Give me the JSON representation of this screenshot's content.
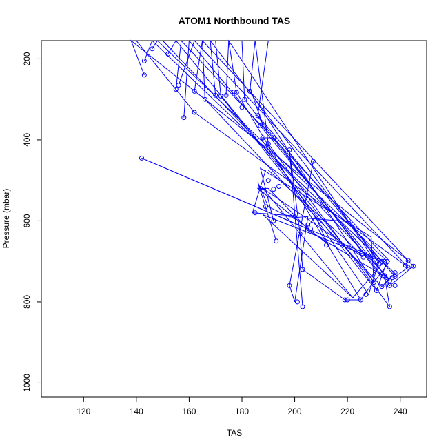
{
  "chart_data": {
    "type": "line",
    "title": "ATOM1 Northbound TAS",
    "xlabel": "TAS",
    "ylabel": "Pressure (mbar)",
    "xlim": [
      104,
      250
    ],
    "ylim": [
      1035,
      155
    ],
    "y_reversed": true,
    "x_ticks": [
      120,
      140,
      160,
      180,
      200,
      220,
      240
    ],
    "y_ticks": [
      200,
      400,
      600,
      800,
      1000
    ],
    "grid": false,
    "legend": "none",
    "series_color": "#0000ff",
    "path_segments": [
      [
        [
          143,
          240
        ],
        [
          138,
          155
        ],
        [
          243,
          698
        ],
        [
          242,
          710
        ],
        [
          162,
          332
        ],
        [
          140,
          155
        ]
      ],
      [
        [
          143,
          205
        ],
        [
          146,
          155
        ],
        [
          238,
          730
        ],
        [
          233,
          762
        ],
        [
          166,
          300
        ],
        [
          165,
          155
        ]
      ],
      [
        [
          146,
          175
        ],
        [
          148,
          155
        ],
        [
          235,
          700
        ],
        [
          231,
          772
        ],
        [
          172,
          292
        ],
        [
          170,
          155
        ]
      ],
      [
        [
          152,
          188
        ],
        [
          155,
          155
        ],
        [
          230,
          750
        ],
        [
          225,
          795
        ],
        [
          178,
          283
        ],
        [
          175,
          155
        ]
      ],
      [
        [
          158,
          345
        ],
        [
          160,
          155
        ],
        [
          236,
          748
        ],
        [
          233,
          740
        ],
        [
          181,
          300
        ],
        [
          180,
          155
        ]
      ],
      [
        [
          155,
          275
        ],
        [
          157,
          155
        ],
        [
          236,
          700
        ],
        [
          230,
          752
        ],
        [
          183,
          280
        ],
        [
          185,
          155
        ]
      ],
      [
        [
          156,
          265
        ],
        [
          162,
          155
        ],
        [
          243,
          715
        ],
        [
          238,
          738
        ],
        [
          186,
          340
        ],
        [
          190,
          155
        ]
      ],
      [
        [
          162,
          280
        ],
        [
          165,
          155
        ],
        [
          245,
          712
        ],
        [
          236,
          760
        ],
        [
          188,
          365
        ],
        [
          183,
          270
        ]
      ],
      [
        [
          170,
          290
        ],
        [
          168,
          155
        ],
        [
          232,
          700
        ],
        [
          228,
          782
        ],
        [
          187,
          395
        ],
        [
          192,
          395
        ]
      ],
      [
        [
          174,
          290
        ],
        [
          175,
          155
        ],
        [
          234,
          735
        ],
        [
          236,
          812
        ],
        [
          190,
          410
        ],
        [
          185,
          155
        ]
      ],
      [
        [
          142,
          445
        ],
        [
          234,
          700
        ],
        [
          222,
          790
        ],
        [
          188,
          585
        ],
        [
          233,
          700
        ]
      ],
      [
        [
          142,
          445
        ],
        [
          205,
          620
        ],
        [
          190,
          520
        ],
        [
          186,
          520
        ],
        [
          213,
          660
        ]
      ],
      [
        [
          189,
          475
        ],
        [
          184,
          580
        ],
        [
          205,
          590
        ],
        [
          200,
          800
        ],
        [
          198,
          760
        ],
        [
          207,
          453
        ]
      ],
      [
        [
          203,
          810
        ],
        [
          198,
          425
        ],
        [
          202,
          630
        ],
        [
          203,
          720
        ],
        [
          219,
          795
        ],
        [
          225,
          795
        ]
      ],
      [
        [
          193,
          650
        ],
        [
          186,
          505
        ],
        [
          190,
          565
        ],
        [
          198,
          590
        ],
        [
          221,
          602
        ],
        [
          232,
          705
        ]
      ],
      [
        [
          190,
          475
        ],
        [
          220,
          650
        ],
        [
          226,
          690
        ],
        [
          188,
          520
        ],
        [
          222,
          790
        ]
      ],
      [
        [
          192,
          600
        ],
        [
          187,
          470
        ],
        [
          229,
          640
        ],
        [
          230,
          750
        ]
      ],
      [
        [
          150,
          155
        ],
        [
          236,
          745
        ],
        [
          204,
          620
        ],
        [
          208,
          590
        ],
        [
          213,
          665
        ]
      ]
    ],
    "points": [
      [
        143,
        205
      ],
      [
        143,
        240
      ],
      [
        146,
        175
      ],
      [
        152,
        188
      ],
      [
        155,
        275
      ],
      [
        156,
        265
      ],
      [
        158,
        345
      ],
      [
        162,
        280
      ],
      [
        162,
        332
      ],
      [
        166,
        300
      ],
      [
        170,
        290
      ],
      [
        172,
        292
      ],
      [
        174,
        290
      ],
      [
        177,
        282
      ],
      [
        178,
        283
      ],
      [
        180,
        320
      ],
      [
        181,
        300
      ],
      [
        183,
        280
      ],
      [
        186,
        340
      ],
      [
        187,
        365
      ],
      [
        188,
        395
      ],
      [
        190,
        410
      ],
      [
        192,
        395
      ],
      [
        142,
        445
      ],
      [
        185,
        580
      ],
      [
        187,
        520
      ],
      [
        188,
        525
      ],
      [
        189,
        565
      ],
      [
        190,
        500
      ],
      [
        192,
        522
      ],
      [
        192,
        600
      ],
      [
        193,
        650
      ],
      [
        194,
        515
      ],
      [
        198,
        425
      ],
      [
        198,
        760
      ],
      [
        200,
        590
      ],
      [
        201,
        800
      ],
      [
        202,
        632
      ],
      [
        203,
        720
      ],
      [
        203,
        812
      ],
      [
        205,
        610
      ],
      [
        206,
        620
      ],
      [
        207,
        453
      ],
      [
        212,
        660
      ],
      [
        219,
        795
      ],
      [
        220,
        795
      ],
      [
        225,
        795
      ],
      [
        226,
        690
      ],
      [
        227,
        782
      ],
      [
        230,
        752
      ],
      [
        231,
        772
      ],
      [
        232,
        705
      ],
      [
        233,
        700
      ],
      [
        233,
        762
      ],
      [
        234,
        735
      ],
      [
        234,
        700
      ],
      [
        235,
        700
      ],
      [
        236,
        748
      ],
      [
        236,
        760
      ],
      [
        236,
        812
      ],
      [
        237,
        740
      ],
      [
        238,
        728
      ],
      [
        238,
        738
      ],
      [
        238,
        760
      ],
      [
        242,
        710
      ],
      [
        243,
        698
      ],
      [
        243,
        715
      ],
      [
        245,
        712
      ]
    ]
  }
}
